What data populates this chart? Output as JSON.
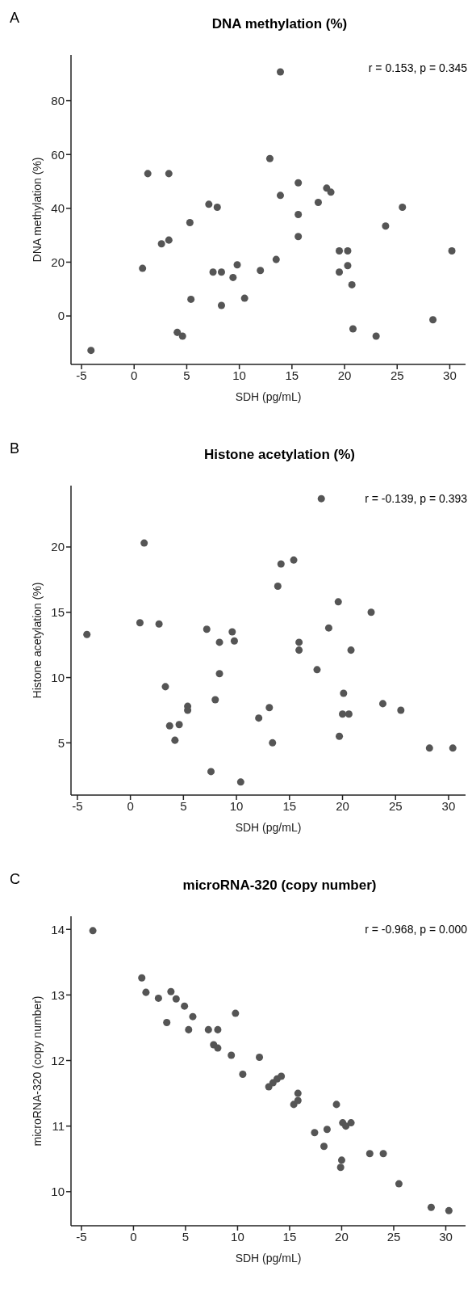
{
  "chart_data": [
    {
      "type": "scatter",
      "title": "DNA methylation (%)",
      "xlabel": "SDH (pg/mL)",
      "ylabel": "DNA methylation (%)",
      "annotations": [
        "A",
        "r = 0.153, p = 0.345"
      ],
      "marker": "circle",
      "xlim": [
        -6,
        31.5
      ],
      "ylim": [
        -18,
        97
      ],
      "xticks": [
        -5,
        0,
        5,
        10,
        15,
        20,
        25,
        30
      ],
      "yticks": [
        0,
        20,
        40,
        60,
        80
      ],
      "series": [
        {
          "color": "#555555",
          "x": [
            13.9,
            12.9,
            1.3,
            3.3,
            15.6,
            18.3,
            18.7,
            13.9,
            17.5,
            7.1,
            7.9,
            25.5,
            15.6,
            5.3,
            23.9,
            15.6,
            3.3,
            2.6,
            19.5,
            20.3,
            30.2,
            13.5,
            9.8,
            20.3,
            0.8,
            12.0,
            7.5,
            8.3,
            19.5,
            9.4,
            20.7,
            10.5,
            5.4,
            8.3,
            28.4,
            20.8,
            4.1,
            4.6,
            23.0,
            -4.1
          ],
          "values": [
            90.7,
            58.5,
            52.9,
            52.9,
            49.5,
            47.5,
            46,
            44.8,
            42.2,
            41.5,
            40.4,
            40.4,
            37.7,
            34.7,
            33.4,
            29.5,
            28.2,
            26.8,
            24.2,
            24.2,
            24.2,
            21,
            19,
            18.7,
            17.7,
            16.9,
            16.3,
            16.3,
            16.3,
            14.3,
            11.6,
            6.6,
            6.2,
            3.9,
            -1.4,
            -4.8,
            -6.1,
            -7.5,
            -7.5,
            -12.8
          ]
        }
      ]
    },
    {
      "type": "scatter",
      "title": "Histone acetylation (%)",
      "xlabel": "SDH (pg/mL)",
      "ylabel": "Histone acetylation (%)",
      "annotations": [
        "B",
        "r = -0.139, p = 0.393"
      ],
      "marker": "circle",
      "xlim": [
        -5.6,
        31.6
      ],
      "ylim": [
        1,
        24.7
      ],
      "xticks": [
        -5,
        0,
        5,
        10,
        15,
        20,
        25,
        30
      ],
      "yticks": [
        5,
        10,
        15,
        20
      ],
      "series": [
        {
          "color": "#555555",
          "x": [
            18.0,
            1.3,
            15.4,
            14.2,
            13.9,
            19.6,
            22.7,
            0.9,
            2.7,
            18.7,
            7.2,
            9.6,
            -4.1,
            9.8,
            8.4,
            15.9,
            15.9,
            20.8,
            17.6,
            8.4,
            3.3,
            20.1,
            8.0,
            23.8,
            13.1,
            5.4,
            5.4,
            25.5,
            20.0,
            20.6,
            12.1,
            3.7,
            4.6,
            4.2,
            19.7,
            13.4,
            28.2,
            30.4,
            7.6,
            10.4
          ],
          "values": [
            23.7,
            20.3,
            19.0,
            18.7,
            17.0,
            15.8,
            15.0,
            14.2,
            14.1,
            13.8,
            13.7,
            13.5,
            13.3,
            12.8,
            12.7,
            12.7,
            12.1,
            12.1,
            10.6,
            10.3,
            9.3,
            8.8,
            8.3,
            8.0,
            7.7,
            7.8,
            7.5,
            7.5,
            7.2,
            7.2,
            6.9,
            6.3,
            6.4,
            5.2,
            5.5,
            5.0,
            4.6,
            4.6,
            2.8,
            2.0
          ]
        }
      ]
    },
    {
      "type": "scatter",
      "title": "microRNA-320 (copy number)",
      "xlabel": "SDH (pg/mL)",
      "ylabel": "microRNA-320 (copy number)",
      "annotations": [
        "C",
        "r = -0.968, p = 0.000"
      ],
      "marker": "circle",
      "xlim": [
        -6,
        31.9
      ],
      "ylim": [
        9.48,
        14.2
      ],
      "xticks": [
        -5,
        0,
        5,
        10,
        15,
        20,
        25,
        30
      ],
      "yticks": [
        10,
        11,
        12,
        13,
        14
      ],
      "series": [
        {
          "color": "#555555",
          "x": [
            -3.9,
            0.8,
            1.2,
            2.4,
            3.6,
            4.1,
            4.9,
            5.7,
            3.2,
            5.3,
            9.8,
            7.2,
            8.1,
            7.7,
            8.1,
            9.4,
            12.1,
            10.5,
            13.0,
            13.4,
            13.8,
            14.2,
            15.8,
            15.4,
            15.8,
            19.5,
            20.1,
            20.4,
            20.9,
            17.4,
            18.6,
            18.3,
            20.0,
            19.9,
            22.7,
            24.0,
            25.5,
            28.6,
            30.3
          ],
          "values": [
            13.98,
            13.26,
            13.04,
            12.95,
            13.05,
            12.94,
            12.83,
            12.67,
            12.58,
            12.47,
            12.72,
            12.47,
            12.47,
            12.24,
            12.19,
            12.08,
            12.05,
            11.79,
            11.6,
            11.66,
            11.72,
            11.76,
            11.5,
            11.33,
            11.39,
            11.33,
            11.05,
            11.0,
            11.05,
            10.9,
            10.95,
            10.69,
            10.48,
            10.37,
            10.58,
            10.58,
            10.12,
            9.76,
            9.71
          ]
        }
      ]
    }
  ]
}
